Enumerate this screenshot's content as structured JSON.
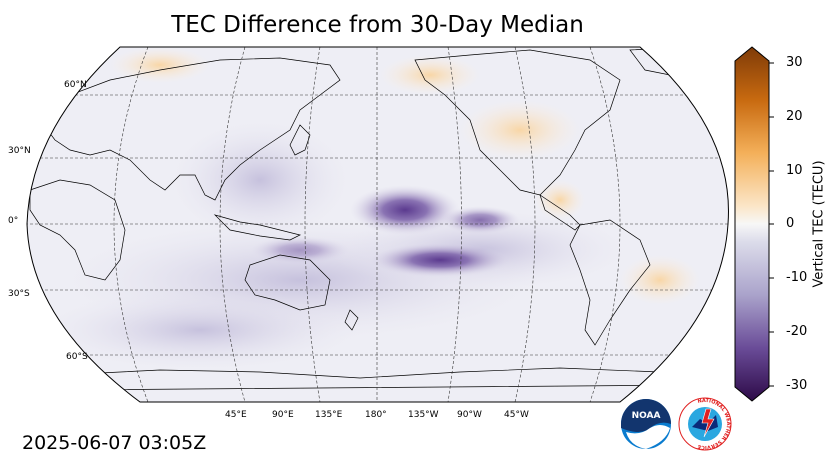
{
  "title": "TEC Difference from 30-Day Median",
  "timestamp": "2025-06-07 03:05Z",
  "colorbar": {
    "label": "Vertical TEC (TECU)",
    "ticks": [
      "30",
      "20",
      "10",
      "0",
      "-10",
      "-20",
      "-30"
    ],
    "min": -30,
    "max": 30,
    "neg_color": "#3b0f5c",
    "pos_color": "#7f3b08",
    "zero_color": "#f7f7f7"
  },
  "map": {
    "lat_labels": [
      "60°N",
      "30°N",
      "0°",
      "30°S",
      "60°S"
    ],
    "lon_labels": [
      "45°E",
      "90°E",
      "135°E",
      "180°",
      "135°W",
      "90°W",
      "45°W"
    ],
    "ocean_color": "#f2f2f6"
  },
  "logos": {
    "noaa_text": "NOAA",
    "nws_text": "NATIONAL WEATHER SERVICE"
  }
}
